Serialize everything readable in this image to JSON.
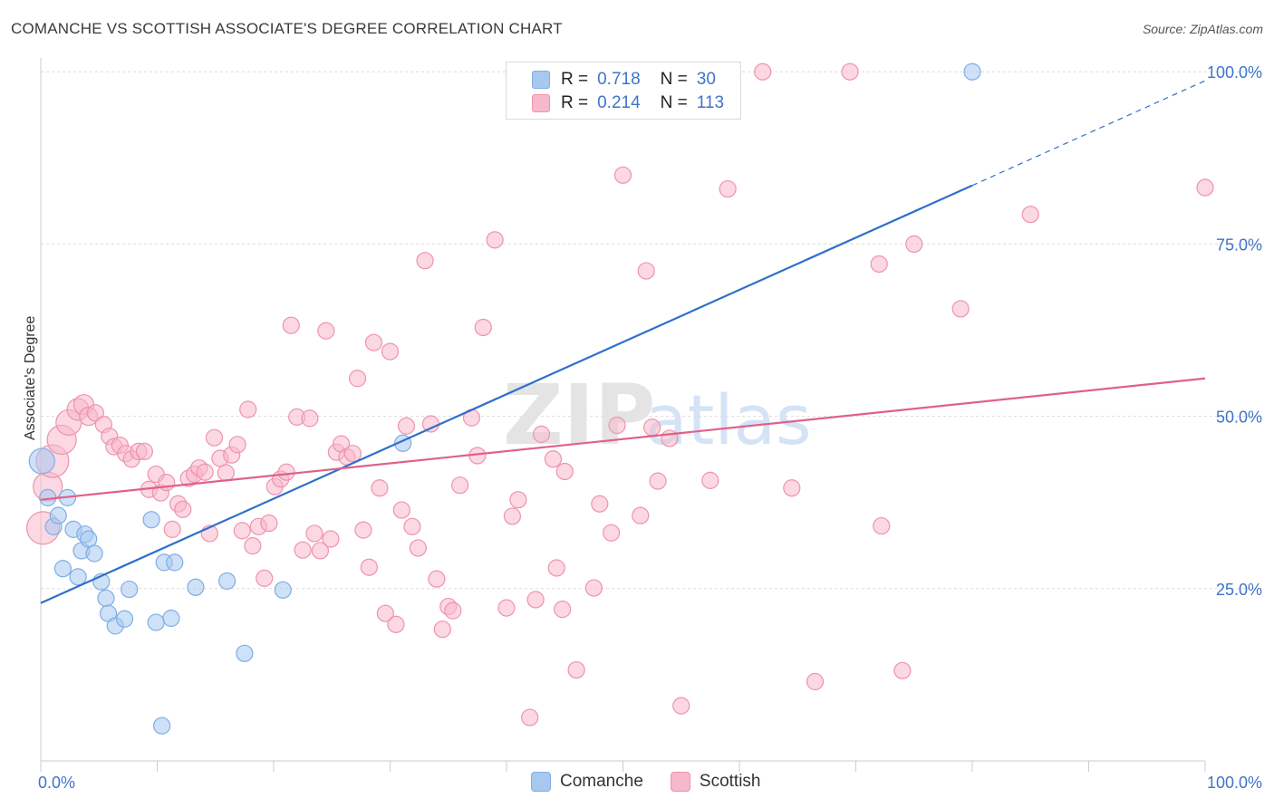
{
  "header": {
    "title": "COMANCHE VS SCOTTISH ASSOCIATE'S DEGREE CORRELATION CHART",
    "source": "Source: ZipAtlas.com"
  },
  "watermark": {
    "zip": "ZIP",
    "atlas": "atlas"
  },
  "legend_top": [
    {
      "r_label": "R =",
      "r_value": "0.718",
      "n_label": "N =",
      "n_value": "30",
      "color": "#a8c8f0"
    },
    {
      "r_label": "R =",
      "r_value": "0.214",
      "n_label": "N =",
      "n_value": "113",
      "color": "#f7b8cb"
    }
  ],
  "legend_bottom": [
    {
      "label": "Comanche",
      "color": "#a8c8f0"
    },
    {
      "label": "Scottish",
      "color": "#f7b8cb"
    }
  ],
  "chart_data": {
    "type": "scatter",
    "ylabel": "Associate's Degree",
    "xlim": [
      0,
      100
    ],
    "ylim": [
      0,
      102
    ],
    "x_tick_labels": [
      {
        "value": 0,
        "label": "0.0%"
      },
      {
        "value": 100,
        "label": "100.0%"
      }
    ],
    "y_tick_labels": [
      {
        "value": 25,
        "label": "25.0%"
      },
      {
        "value": 50,
        "label": "50.0%"
      },
      {
        "value": 75,
        "label": "75.0%"
      },
      {
        "value": 100,
        "label": "100.0%"
      }
    ],
    "grid": true,
    "legend_position": "top-center",
    "series": [
      {
        "name": "Comanche",
        "color": "#a8c8f0",
        "stroke": "#7eaee6",
        "trend": {
          "x0": 0,
          "y0": 22.9,
          "x1": 80,
          "y1": 83.5,
          "dashed_to_x": 100,
          "dashed_to_y": 98.7,
          "color": "#2f6fcc"
        },
        "points": [
          {
            "x": 0.1,
            "y": 43.5,
            "s": 14
          },
          {
            "x": 0.6,
            "y": 38.2,
            "s": 9
          },
          {
            "x": 1.1,
            "y": 34.0,
            "s": 9
          },
          {
            "x": 1.5,
            "y": 35.6,
            "s": 9
          },
          {
            "x": 1.9,
            "y": 27.9,
            "s": 9
          },
          {
            "x": 2.3,
            "y": 38.2,
            "s": 9
          },
          {
            "x": 2.8,
            "y": 33.6,
            "s": 9
          },
          {
            "x": 3.2,
            "y": 26.7,
            "s": 9
          },
          {
            "x": 3.5,
            "y": 30.5,
            "s": 9
          },
          {
            "x": 3.8,
            "y": 32.9,
            "s": 9
          },
          {
            "x": 4.1,
            "y": 32.2,
            "s": 9
          },
          {
            "x": 4.6,
            "y": 30.1,
            "s": 9
          },
          {
            "x": 5.2,
            "y": 26.0,
            "s": 9
          },
          {
            "x": 5.6,
            "y": 23.6,
            "s": 9
          },
          {
            "x": 5.8,
            "y": 21.4,
            "s": 9
          },
          {
            "x": 6.4,
            "y": 19.6,
            "s": 9
          },
          {
            "x": 7.2,
            "y": 20.6,
            "s": 9
          },
          {
            "x": 7.6,
            "y": 24.9,
            "s": 9
          },
          {
            "x": 9.5,
            "y": 35.0,
            "s": 9
          },
          {
            "x": 9.9,
            "y": 20.1,
            "s": 9
          },
          {
            "x": 10.4,
            "y": 5.1,
            "s": 9
          },
          {
            "x": 10.6,
            "y": 28.8,
            "s": 9
          },
          {
            "x": 11.2,
            "y": 20.7,
            "s": 9
          },
          {
            "x": 11.5,
            "y": 28.8,
            "s": 9
          },
          {
            "x": 13.3,
            "y": 25.2,
            "s": 9
          },
          {
            "x": 16.0,
            "y": 26.1,
            "s": 9
          },
          {
            "x": 17.5,
            "y": 15.6,
            "s": 9
          },
          {
            "x": 20.8,
            "y": 24.8,
            "s": 9
          },
          {
            "x": 31.1,
            "y": 46.1,
            "s": 9
          },
          {
            "x": 80.0,
            "y": 100.0,
            "s": 9
          }
        ]
      },
      {
        "name": "Scottish",
        "color": "#f7b8cb",
        "stroke": "#ee93ae",
        "trend": {
          "x0": 0,
          "y0": 37.9,
          "x1": 100,
          "y1": 55.5,
          "color": "#e0608a"
        },
        "points": [
          {
            "x": 0.2,
            "y": 33.8,
            "s": 18
          },
          {
            "x": 0.6,
            "y": 39.8,
            "s": 16
          },
          {
            "x": 1.0,
            "y": 43.5,
            "s": 18
          },
          {
            "x": 1.8,
            "y": 46.6,
            "s": 16
          },
          {
            "x": 2.4,
            "y": 49.1,
            "s": 14
          },
          {
            "x": 3.2,
            "y": 51.0,
            "s": 12
          },
          {
            "x": 3.7,
            "y": 51.7,
            "s": 11
          },
          {
            "x": 4.1,
            "y": 50.0,
            "s": 10
          },
          {
            "x": 4.7,
            "y": 50.5,
            "s": 9
          },
          {
            "x": 5.4,
            "y": 48.8,
            "s": 9
          },
          {
            "x": 5.9,
            "y": 47.1,
            "s": 9
          },
          {
            "x": 6.3,
            "y": 45.6,
            "s": 9
          },
          {
            "x": 6.8,
            "y": 45.8,
            "s": 9
          },
          {
            "x": 7.3,
            "y": 44.6,
            "s": 9
          },
          {
            "x": 7.8,
            "y": 43.8,
            "s": 9
          },
          {
            "x": 8.4,
            "y": 44.9,
            "s": 9
          },
          {
            "x": 8.9,
            "y": 44.9,
            "s": 9
          },
          {
            "x": 9.3,
            "y": 39.4,
            "s": 9
          },
          {
            "x": 9.9,
            "y": 41.6,
            "s": 9
          },
          {
            "x": 10.3,
            "y": 38.9,
            "s": 9
          },
          {
            "x": 10.8,
            "y": 40.4,
            "s": 9
          },
          {
            "x": 11.3,
            "y": 33.6,
            "s": 9
          },
          {
            "x": 11.8,
            "y": 37.3,
            "s": 9
          },
          {
            "x": 12.2,
            "y": 36.5,
            "s": 9
          },
          {
            "x": 12.7,
            "y": 41.0,
            "s": 9
          },
          {
            "x": 13.2,
            "y": 41.6,
            "s": 9
          },
          {
            "x": 13.6,
            "y": 42.5,
            "s": 9
          },
          {
            "x": 14.1,
            "y": 41.9,
            "s": 9
          },
          {
            "x": 14.5,
            "y": 33.0,
            "s": 9
          },
          {
            "x": 14.9,
            "y": 46.9,
            "s": 9
          },
          {
            "x": 15.4,
            "y": 43.9,
            "s": 9
          },
          {
            "x": 15.9,
            "y": 41.8,
            "s": 9
          },
          {
            "x": 16.4,
            "y": 44.4,
            "s": 9
          },
          {
            "x": 16.9,
            "y": 45.9,
            "s": 9
          },
          {
            "x": 17.3,
            "y": 33.4,
            "s": 9
          },
          {
            "x": 17.8,
            "y": 51.0,
            "s": 9
          },
          {
            "x": 18.2,
            "y": 31.2,
            "s": 9
          },
          {
            "x": 18.7,
            "y": 34.0,
            "s": 9
          },
          {
            "x": 19.2,
            "y": 26.5,
            "s": 9
          },
          {
            "x": 19.6,
            "y": 34.5,
            "s": 9
          },
          {
            "x": 20.1,
            "y": 39.8,
            "s": 9
          },
          {
            "x": 20.6,
            "y": 40.9,
            "s": 9
          },
          {
            "x": 21.1,
            "y": 41.9,
            "s": 9
          },
          {
            "x": 21.5,
            "y": 63.2,
            "s": 9
          },
          {
            "x": 22.0,
            "y": 49.9,
            "s": 9
          },
          {
            "x": 22.5,
            "y": 30.6,
            "s": 9
          },
          {
            "x": 23.1,
            "y": 49.7,
            "s": 9
          },
          {
            "x": 23.5,
            "y": 33.0,
            "s": 9
          },
          {
            "x": 24.0,
            "y": 30.5,
            "s": 9
          },
          {
            "x": 24.5,
            "y": 62.4,
            "s": 9
          },
          {
            "x": 24.9,
            "y": 32.2,
            "s": 9
          },
          {
            "x": 25.4,
            "y": 44.8,
            "s": 9
          },
          {
            "x": 25.8,
            "y": 46.0,
            "s": 9
          },
          {
            "x": 26.3,
            "y": 44.1,
            "s": 9
          },
          {
            "x": 26.8,
            "y": 44.6,
            "s": 9
          },
          {
            "x": 27.2,
            "y": 55.5,
            "s": 9
          },
          {
            "x": 27.7,
            "y": 33.5,
            "s": 9
          },
          {
            "x": 28.2,
            "y": 28.1,
            "s": 9
          },
          {
            "x": 28.6,
            "y": 60.7,
            "s": 9
          },
          {
            "x": 29.1,
            "y": 39.6,
            "s": 9
          },
          {
            "x": 29.6,
            "y": 21.4,
            "s": 9
          },
          {
            "x": 30.0,
            "y": 59.4,
            "s": 9
          },
          {
            "x": 30.5,
            "y": 19.8,
            "s": 9
          },
          {
            "x": 31.0,
            "y": 36.4,
            "s": 9
          },
          {
            "x": 31.4,
            "y": 48.6,
            "s": 9
          },
          {
            "x": 31.9,
            "y": 34.0,
            "s": 9
          },
          {
            "x": 32.4,
            "y": 30.9,
            "s": 9
          },
          {
            "x": 33.0,
            "y": 72.6,
            "s": 9
          },
          {
            "x": 33.5,
            "y": 48.9,
            "s": 9
          },
          {
            "x": 34.0,
            "y": 26.4,
            "s": 9
          },
          {
            "x": 34.5,
            "y": 19.1,
            "s": 9
          },
          {
            "x": 35.0,
            "y": 22.4,
            "s": 9
          },
          {
            "x": 35.4,
            "y": 21.8,
            "s": 9
          },
          {
            "x": 36.0,
            "y": 40.0,
            "s": 9
          },
          {
            "x": 37.0,
            "y": 49.8,
            "s": 9
          },
          {
            "x": 37.5,
            "y": 44.3,
            "s": 9
          },
          {
            "x": 38.0,
            "y": 62.9,
            "s": 9
          },
          {
            "x": 39.0,
            "y": 75.6,
            "s": 9
          },
          {
            "x": 40.0,
            "y": 22.2,
            "s": 9
          },
          {
            "x": 40.5,
            "y": 35.5,
            "s": 9
          },
          {
            "x": 41.0,
            "y": 37.9,
            "s": 9
          },
          {
            "x": 42.0,
            "y": 6.3,
            "s": 9
          },
          {
            "x": 42.5,
            "y": 23.4,
            "s": 9
          },
          {
            "x": 43.0,
            "y": 47.4,
            "s": 9
          },
          {
            "x": 44.0,
            "y": 43.8,
            "s": 9
          },
          {
            "x": 44.3,
            "y": 28.0,
            "s": 9
          },
          {
            "x": 44.8,
            "y": 22.0,
            "s": 9
          },
          {
            "x": 45.0,
            "y": 42.0,
            "s": 9
          },
          {
            "x": 46.0,
            "y": 13.2,
            "s": 9
          },
          {
            "x": 47.5,
            "y": 25.1,
            "s": 9
          },
          {
            "x": 48.0,
            "y": 37.3,
            "s": 9
          },
          {
            "x": 49.0,
            "y": 33.1,
            "s": 9
          },
          {
            "x": 49.5,
            "y": 48.7,
            "s": 9
          },
          {
            "x": 50.0,
            "y": 85.0,
            "s": 9
          },
          {
            "x": 51.5,
            "y": 35.6,
            "s": 9
          },
          {
            "x": 52.0,
            "y": 71.1,
            "s": 9
          },
          {
            "x": 52.5,
            "y": 48.4,
            "s": 9
          },
          {
            "x": 53.0,
            "y": 40.6,
            "s": 9
          },
          {
            "x": 54.0,
            "y": 46.8,
            "s": 9
          },
          {
            "x": 55.0,
            "y": 8.0,
            "s": 9
          },
          {
            "x": 57.5,
            "y": 40.7,
            "s": 9
          },
          {
            "x": 59.0,
            "y": 83.0,
            "s": 9
          },
          {
            "x": 62.0,
            "y": 100.0,
            "s": 9
          },
          {
            "x": 64.5,
            "y": 39.6,
            "s": 9
          },
          {
            "x": 66.5,
            "y": 11.5,
            "s": 9
          },
          {
            "x": 69.5,
            "y": 100.0,
            "s": 9
          },
          {
            "x": 72.0,
            "y": 72.1,
            "s": 9
          },
          {
            "x": 72.2,
            "y": 34.1,
            "s": 9
          },
          {
            "x": 74.0,
            "y": 13.1,
            "s": 9
          },
          {
            "x": 75.0,
            "y": 75.0,
            "s": 9
          },
          {
            "x": 79.0,
            "y": 65.6,
            "s": 9
          },
          {
            "x": 85.0,
            "y": 79.3,
            "s": 9
          },
          {
            "x": 100.0,
            "y": 83.2,
            "s": 9
          }
        ]
      }
    ]
  }
}
